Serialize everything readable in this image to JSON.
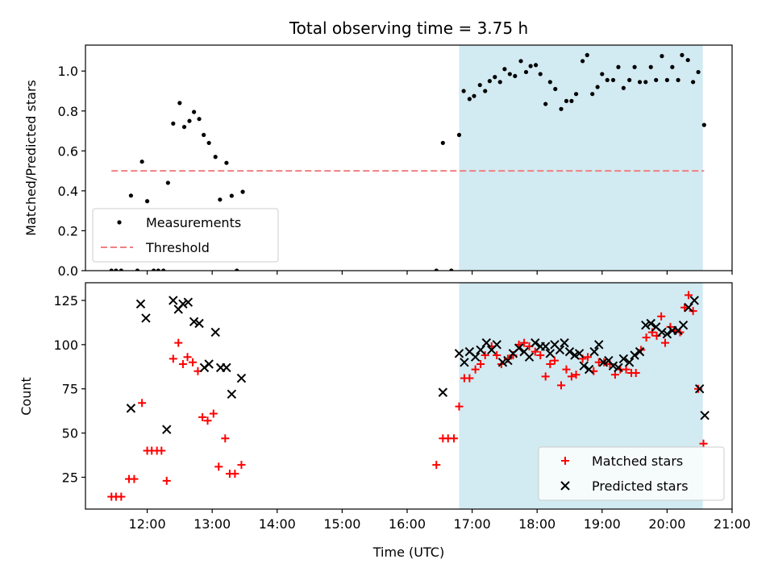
{
  "chart_data": {
    "type": "scatter",
    "title": "Total observing time = 3.75 h",
    "xlabel": "Time (UTC)",
    "x_ticks": [
      "12:00",
      "13:00",
      "14:00",
      "15:00",
      "16:00",
      "17:00",
      "18:00",
      "19:00",
      "20:00",
      "21:00"
    ],
    "x_tick_values": [
      12,
      13,
      14,
      15,
      16,
      17,
      18,
      19,
      20,
      21
    ],
    "xlim": [
      11.05,
      21.0
    ],
    "observing_window": [
      16.8,
      20.55
    ],
    "colors": {
      "window": "#add8e6",
      "measurements": "#000000",
      "threshold": "#f08080",
      "matched": "#ff0000",
      "predicted": "#000000"
    },
    "panels": [
      {
        "ylabel": "Matched/Predicted stars",
        "ylim": [
          0,
          1.13
        ],
        "y_ticks": [
          "0.0",
          "0.2",
          "0.4",
          "0.6",
          "0.8",
          "1.0"
        ],
        "y_tick_values": [
          0,
          0.2,
          0.4,
          0.6,
          0.8,
          1.0
        ],
        "legend_position": "lower left",
        "series": [
          {
            "name": "Measurements",
            "marker": "dot",
            "points": [
              [
                11.45,
                0
              ],
              [
                11.52,
                0
              ],
              [
                11.6,
                0
              ],
              [
                11.75,
                0.376
              ],
              [
                11.85,
                0
              ],
              [
                11.92,
                0.546
              ],
              [
                12.0,
                0.348
              ],
              [
                12.1,
                0
              ],
              [
                12.17,
                0
              ],
              [
                12.25,
                0
              ],
              [
                12.32,
                0.44
              ],
              [
                12.4,
                0.737
              ],
              [
                12.5,
                0.84
              ],
              [
                12.57,
                0.72
              ],
              [
                12.65,
                0.75
              ],
              [
                12.72,
                0.795
              ],
              [
                12.8,
                0.76
              ],
              [
                12.87,
                0.68
              ],
              [
                12.95,
                0.64
              ],
              [
                13.05,
                0.57
              ],
              [
                13.12,
                0.356
              ],
              [
                13.22,
                0.54
              ],
              [
                13.3,
                0.375
              ],
              [
                13.38,
                0
              ],
              [
                13.47,
                0.395
              ],
              [
                16.45,
                0
              ],
              [
                16.55,
                0.64
              ],
              [
                16.68,
                0
              ],
              [
                16.8,
                0.68
              ],
              [
                16.87,
                0.9
              ],
              [
                16.96,
                0.86
              ],
              [
                17.03,
                0.875
              ],
              [
                17.12,
                0.93
              ],
              [
                17.2,
                0.9
              ],
              [
                17.27,
                0.95
              ],
              [
                17.35,
                0.97
              ],
              [
                17.43,
                0.945
              ],
              [
                17.5,
                1.01
              ],
              [
                17.58,
                0.985
              ],
              [
                17.66,
                0.975
              ],
              [
                17.75,
                1.05
              ],
              [
                17.83,
                0.995
              ],
              [
                17.9,
                1.025
              ],
              [
                17.98,
                1.03
              ],
              [
                18.05,
                0.985
              ],
              [
                18.13,
                0.835
              ],
              [
                18.2,
                0.945
              ],
              [
                18.28,
                0.91
              ],
              [
                18.37,
                0.81
              ],
              [
                18.45,
                0.85
              ],
              [
                18.53,
                0.85
              ],
              [
                18.6,
                0.885
              ],
              [
                18.7,
                1.05
              ],
              [
                18.77,
                1.08
              ],
              [
                18.85,
                0.885
              ],
              [
                18.93,
                0.92
              ],
              [
                19.0,
                0.985
              ],
              [
                19.08,
                0.955
              ],
              [
                19.17,
                0.955
              ],
              [
                19.25,
                1.02
              ],
              [
                19.33,
                0.915
              ],
              [
                19.42,
                0.955
              ],
              [
                19.5,
                1.02
              ],
              [
                19.58,
                0.945
              ],
              [
                19.67,
                0.945
              ],
              [
                19.75,
                1.02
              ],
              [
                19.83,
                0.955
              ],
              [
                19.92,
                1.075
              ],
              [
                20.0,
                0.955
              ],
              [
                20.08,
                1.02
              ],
              [
                20.17,
                0.955
              ],
              [
                20.23,
                1.08
              ],
              [
                20.32,
                1.055
              ],
              [
                20.4,
                0.945
              ],
              [
                20.48,
                0.995
              ],
              [
                20.57,
                0.73
              ]
            ]
          },
          {
            "name": "Threshold",
            "marker": "dashed-line",
            "points": [
              [
                11.45,
                0.5
              ],
              [
                20.57,
                0.5
              ]
            ]
          }
        ]
      },
      {
        "ylabel": "Count",
        "ylim": [
          7,
          135
        ],
        "y_ticks": [
          "25",
          "50",
          "75",
          "100",
          "125"
        ],
        "y_tick_values": [
          25,
          50,
          75,
          100,
          125
        ],
        "legend_position": "lower right",
        "series": [
          {
            "name": "Matched stars",
            "marker": "plus",
            "points": [
              [
                11.45,
                14
              ],
              [
                11.52,
                14
              ],
              [
                11.6,
                14
              ],
              [
                11.72,
                24
              ],
              [
                11.8,
                24
              ],
              [
                11.92,
                67
              ],
              [
                12.0,
                40
              ],
              [
                12.07,
                40
              ],
              [
                12.15,
                40
              ],
              [
                12.22,
                40
              ],
              [
                12.3,
                23
              ],
              [
                12.4,
                92
              ],
              [
                12.48,
                101
              ],
              [
                12.55,
                89
              ],
              [
                12.62,
                93
              ],
              [
                12.7,
                90
              ],
              [
                12.78,
                85
              ],
              [
                12.85,
                59
              ],
              [
                12.93,
                57
              ],
              [
                13.02,
                61
              ],
              [
                13.1,
                31
              ],
              [
                13.2,
                47
              ],
              [
                13.27,
                27
              ],
              [
                13.35,
                27
              ],
              [
                13.45,
                32
              ],
              [
                16.45,
                32
              ],
              [
                16.55,
                47
              ],
              [
                16.63,
                47
              ],
              [
                16.72,
                47
              ],
              [
                16.8,
                65
              ],
              [
                16.88,
                81
              ],
              [
                16.96,
                81
              ],
              [
                17.05,
                86
              ],
              [
                17.13,
                89
              ],
              [
                17.2,
                94
              ],
              [
                17.3,
                99
              ],
              [
                17.38,
                94
              ],
              [
                17.45,
                89
              ],
              [
                17.55,
                92
              ],
              [
                17.63,
                94
              ],
              [
                17.72,
                100
              ],
              [
                17.8,
                101
              ],
              [
                17.88,
                99
              ],
              [
                17.97,
                96
              ],
              [
                18.05,
                94
              ],
              [
                18.13,
                82
              ],
              [
                18.2,
                89
              ],
              [
                18.27,
                91
              ],
              [
                18.37,
                77
              ],
              [
                18.45,
                86
              ],
              [
                18.53,
                82
              ],
              [
                18.6,
                83
              ],
              [
                18.7,
                92
              ],
              [
                18.78,
                93
              ],
              [
                18.87,
                85
              ],
              [
                18.95,
                90
              ],
              [
                19.03,
                90
              ],
              [
                19.12,
                89
              ],
              [
                19.2,
                83
              ],
              [
                19.28,
                86
              ],
              [
                19.37,
                86
              ],
              [
                19.45,
                84
              ],
              [
                19.52,
                84
              ],
              [
                19.6,
                97
              ],
              [
                19.68,
                104
              ],
              [
                19.77,
                107
              ],
              [
                19.84,
                105
              ],
              [
                19.91,
                116
              ],
              [
                19.97,
                101
              ],
              [
                20.05,
                110
              ],
              [
                20.12,
                108
              ],
              [
                20.2,
                107
              ],
              [
                20.27,
                121
              ],
              [
                20.33,
                128
              ],
              [
                20.4,
                119
              ],
              [
                20.48,
                75
              ],
              [
                20.56,
                44
              ]
            ]
          },
          {
            "name": "Predicted stars",
            "marker": "x",
            "points": [
              [
                11.75,
                64
              ],
              [
                11.9,
                123
              ],
              [
                11.98,
                115
              ],
              [
                12.3,
                52
              ],
              [
                12.4,
                125
              ],
              [
                12.48,
                120
              ],
              [
                12.55,
                123
              ],
              [
                12.63,
                124
              ],
              [
                12.72,
                113
              ],
              [
                12.8,
                112
              ],
              [
                12.88,
                87
              ],
              [
                12.95,
                89
              ],
              [
                13.05,
                107
              ],
              [
                13.13,
                87
              ],
              [
                13.22,
                87
              ],
              [
                13.3,
                72
              ],
              [
                13.45,
                81
              ],
              [
                16.55,
                73
              ],
              [
                16.8,
                95
              ],
              [
                16.88,
                90
              ],
              [
                16.96,
                96
              ],
              [
                17.05,
                93
              ],
              [
                17.13,
                97
              ],
              [
                17.22,
                101
              ],
              [
                17.3,
                97
              ],
              [
                17.38,
                100
              ],
              [
                17.47,
                90
              ],
              [
                17.55,
                91
              ],
              [
                17.63,
                95
              ],
              [
                17.72,
                98
              ],
              [
                17.8,
                96
              ],
              [
                17.88,
                93
              ],
              [
                17.97,
                101
              ],
              [
                18.05,
                99
              ],
              [
                18.13,
                99
              ],
              [
                18.2,
                95
              ],
              [
                18.27,
                100
              ],
              [
                18.35,
                97
              ],
              [
                18.42,
                101
              ],
              [
                18.5,
                96
              ],
              [
                18.58,
                94
              ],
              [
                18.65,
                95
              ],
              [
                18.72,
                88
              ],
              [
                18.8,
                86
              ],
              [
                18.88,
                96
              ],
              [
                18.95,
                100
              ],
              [
                19.02,
                90
              ],
              [
                19.1,
                91
              ],
              [
                19.17,
                88
              ],
              [
                19.25,
                87
              ],
              [
                19.33,
                92
              ],
              [
                19.42,
                90
              ],
              [
                19.5,
                94
              ],
              [
                19.58,
                96
              ],
              [
                19.67,
                111
              ],
              [
                19.75,
                112
              ],
              [
                19.83,
                110
              ],
              [
                19.92,
                107
              ],
              [
                20.0,
                106
              ],
              [
                20.08,
                108
              ],
              [
                20.17,
                108
              ],
              [
                20.25,
                111
              ],
              [
                20.33,
                121
              ],
              [
                20.42,
                125
              ],
              [
                20.5,
                75
              ],
              [
                20.58,
                60
              ]
            ]
          }
        ]
      }
    ]
  }
}
